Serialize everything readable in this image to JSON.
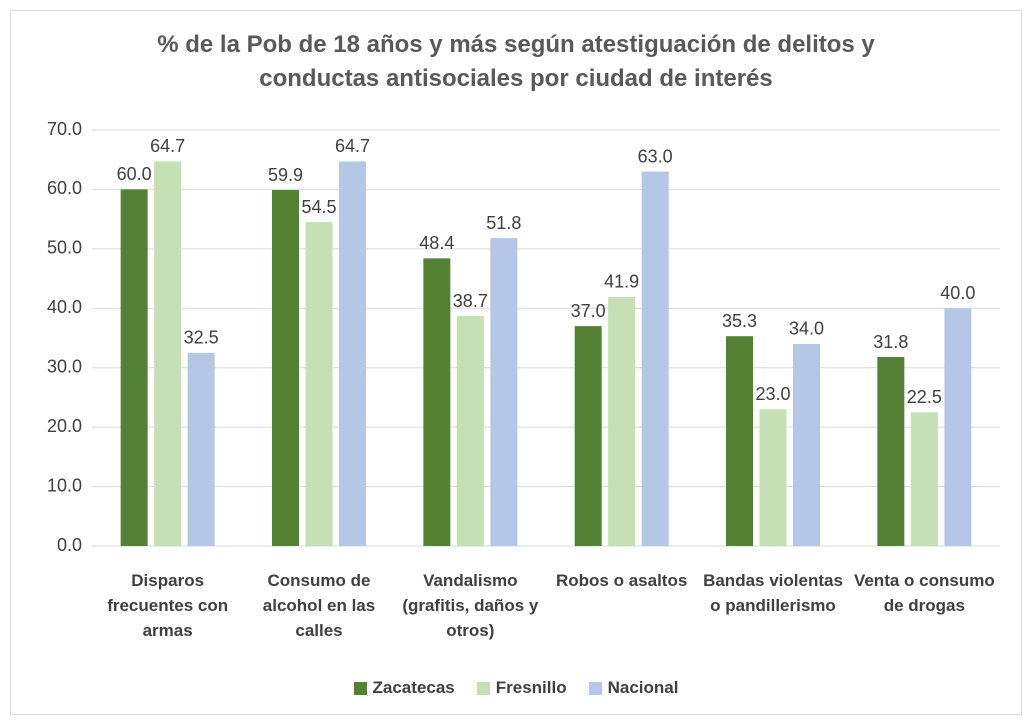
{
  "chart_data": {
    "type": "bar",
    "title": "% de la Pob de 18 años y más según atestiguación de delitos y conductas antisociales por ciudad de interés",
    "categories": [
      "Disparos frecuentes con armas",
      "Consumo de alcohol en las calles",
      "Vandalismo (grafitis, daños y otros)",
      "Robos o asaltos",
      "Bandas violentas o pandillerismo",
      "Venta o consumo de drogas"
    ],
    "series": [
      {
        "name": "Zacatecas",
        "color": "#548235",
        "values": [
          60.0,
          59.9,
          48.4,
          37.0,
          35.3,
          31.8
        ],
        "value_labels": [
          "60.0",
          "59.9",
          "48.4",
          "37.0",
          "35.3",
          "31.8"
        ]
      },
      {
        "name": "Fresnillo",
        "color": "#c5e0b4",
        "values": [
          64.7,
          54.5,
          38.7,
          41.9,
          23.0,
          22.5
        ],
        "value_labels": [
          "64.7",
          "54.5",
          "38.7",
          "41.9",
          "23.0",
          "22.5"
        ]
      },
      {
        "name": "Nacional",
        "color": "#b4c7e7",
        "values": [
          32.5,
          64.7,
          51.8,
          63.0,
          34.0,
          40.0
        ],
        "value_labels": [
          "32.5",
          "64.7",
          "51.8",
          "63.0",
          "34.0",
          "40.0"
        ]
      }
    ],
    "ylim": [
      0,
      70
    ],
    "yticks": [
      {
        "value": 0,
        "label": "0.0"
      },
      {
        "value": 10,
        "label": "10.0"
      },
      {
        "value": 20,
        "label": "20.0"
      },
      {
        "value": 30,
        "label": "30.0"
      },
      {
        "value": 40,
        "label": "40.0"
      },
      {
        "value": 50,
        "label": "50.0"
      },
      {
        "value": 60,
        "label": "60.0"
      },
      {
        "value": 70,
        "label": "70.0"
      }
    ],
    "grid": true,
    "legend": "bottom"
  }
}
